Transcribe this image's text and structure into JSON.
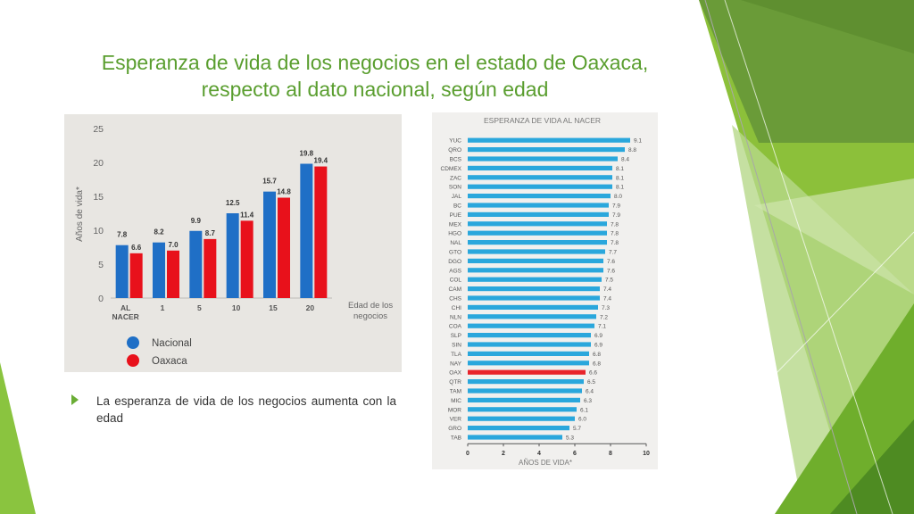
{
  "slide": {
    "title_line1": "Esperanza de vida de los negocios en el estado de Oaxaca,",
    "title_line2": "respecto al dato nacional, según edad",
    "bullet_text": "La esperanza de vida de los negocios aumenta con la edad"
  },
  "colors": {
    "title_green": "#5a9e2f",
    "nacional_blue": "#1f6fc6",
    "oaxaca_red": "#e8111b",
    "state_bar_blue": "#2aa7dc",
    "oaxaca_bar_red": "#e8232a"
  },
  "chart_data": [
    {
      "type": "bar",
      "categories": [
        "AL NACER",
        "1",
        "5",
        "10",
        "15",
        "20"
      ],
      "series": [
        {
          "name": "Nacional",
          "values": [
            7.8,
            8.2,
            9.9,
            12.5,
            15.7,
            19.8
          ]
        },
        {
          "name": "Oaxaca",
          "values": [
            6.6,
            7.0,
            8.7,
            11.4,
            14.8,
            19.4
          ]
        }
      ],
      "ylabel": "Años de vida*",
      "xlabel": "Edad de los negocios",
      "yticks": [
        "0",
        "5",
        "10",
        "15",
        "20",
        "25"
      ],
      "ylim": [
        0,
        25
      ],
      "legend_position": "bottom-left"
    },
    {
      "type": "bar",
      "orientation": "horizontal",
      "title": "ESPERANZA DE VIDA AL NACER",
      "xlabel": "AÑOS DE VIDA*",
      "xticks": [
        "0",
        "2",
        "4",
        "6",
        "8",
        "10"
      ],
      "xlim": [
        0,
        10
      ],
      "highlight": "OAX",
      "categories": [
        "YUC",
        "QRO",
        "BCS",
        "CDMEX",
        "ZAC",
        "SON",
        "JAL",
        "BC",
        "PUE",
        "MEX",
        "HGO",
        "NAL",
        "GTO",
        "DGO",
        "AGS",
        "COL",
        "CAM",
        "CHS",
        "CHI",
        "NLN",
        "COA",
        "SLP",
        "SIN",
        "TLA",
        "NAY",
        "OAX",
        "QTR",
        "TAM",
        "MIC",
        "MOR",
        "VER",
        "GRO",
        "TAB"
      ],
      "values": [
        9.1,
        8.8,
        8.4,
        8.1,
        8.1,
        8.1,
        8.0,
        7.9,
        7.9,
        7.8,
        7.8,
        7.8,
        7.7,
        7.6,
        7.6,
        7.5,
        7.4,
        7.4,
        7.3,
        7.2,
        7.1,
        6.9,
        6.9,
        6.8,
        6.8,
        6.6,
        6.5,
        6.4,
        6.3,
        6.1,
        6.0,
        5.7,
        5.3
      ]
    }
  ]
}
